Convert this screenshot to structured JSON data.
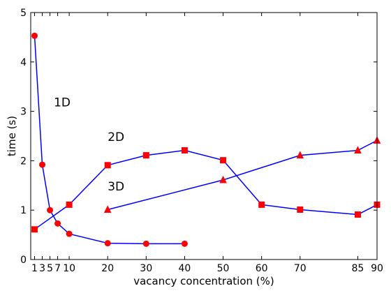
{
  "chart_data": {
    "type": "line",
    "title": "",
    "xlabel": "vacancy concentration (%)",
    "ylabel": "time (s)",
    "xlim": [
      0,
      90
    ],
    "ylim": [
      0,
      5
    ],
    "x_ticks": [
      1,
      3,
      5,
      7,
      10,
      20,
      30,
      40,
      50,
      60,
      70,
      85,
      90
    ],
    "y_ticks": [
      0,
      1,
      2,
      3,
      4,
      5
    ],
    "grid": false,
    "legend": "none",
    "series_color": "#0000ff",
    "marker_color": "#ff0000",
    "series": [
      {
        "marker": "circle",
        "x": [
          1,
          3,
          5,
          7,
          10,
          20,
          30,
          40
        ],
        "y": [
          4.53,
          1.92,
          1.0,
          0.73,
          0.52,
          0.33,
          0.32,
          0.32
        ]
      },
      {
        "marker": "square",
        "x": [
          1,
          10,
          20,
          30,
          40,
          50,
          60,
          70,
          85,
          90
        ],
        "y": [
          0.61,
          1.11,
          1.91,
          2.11,
          2.21,
          2.01,
          1.11,
          1.01,
          0.91,
          1.11
        ]
      },
      {
        "marker": "triangle",
        "x": [
          20,
          50,
          70,
          85,
          90
        ],
        "y": [
          1.01,
          1.61,
          2.11,
          2.21,
          2.41
        ]
      }
    ],
    "annotations": [
      {
        "text": "1D",
        "x": 6,
        "y": 3.1
      },
      {
        "text": "2D",
        "x": 20,
        "y": 2.4
      },
      {
        "text": "3D",
        "x": 20,
        "y": 1.4
      }
    ]
  }
}
